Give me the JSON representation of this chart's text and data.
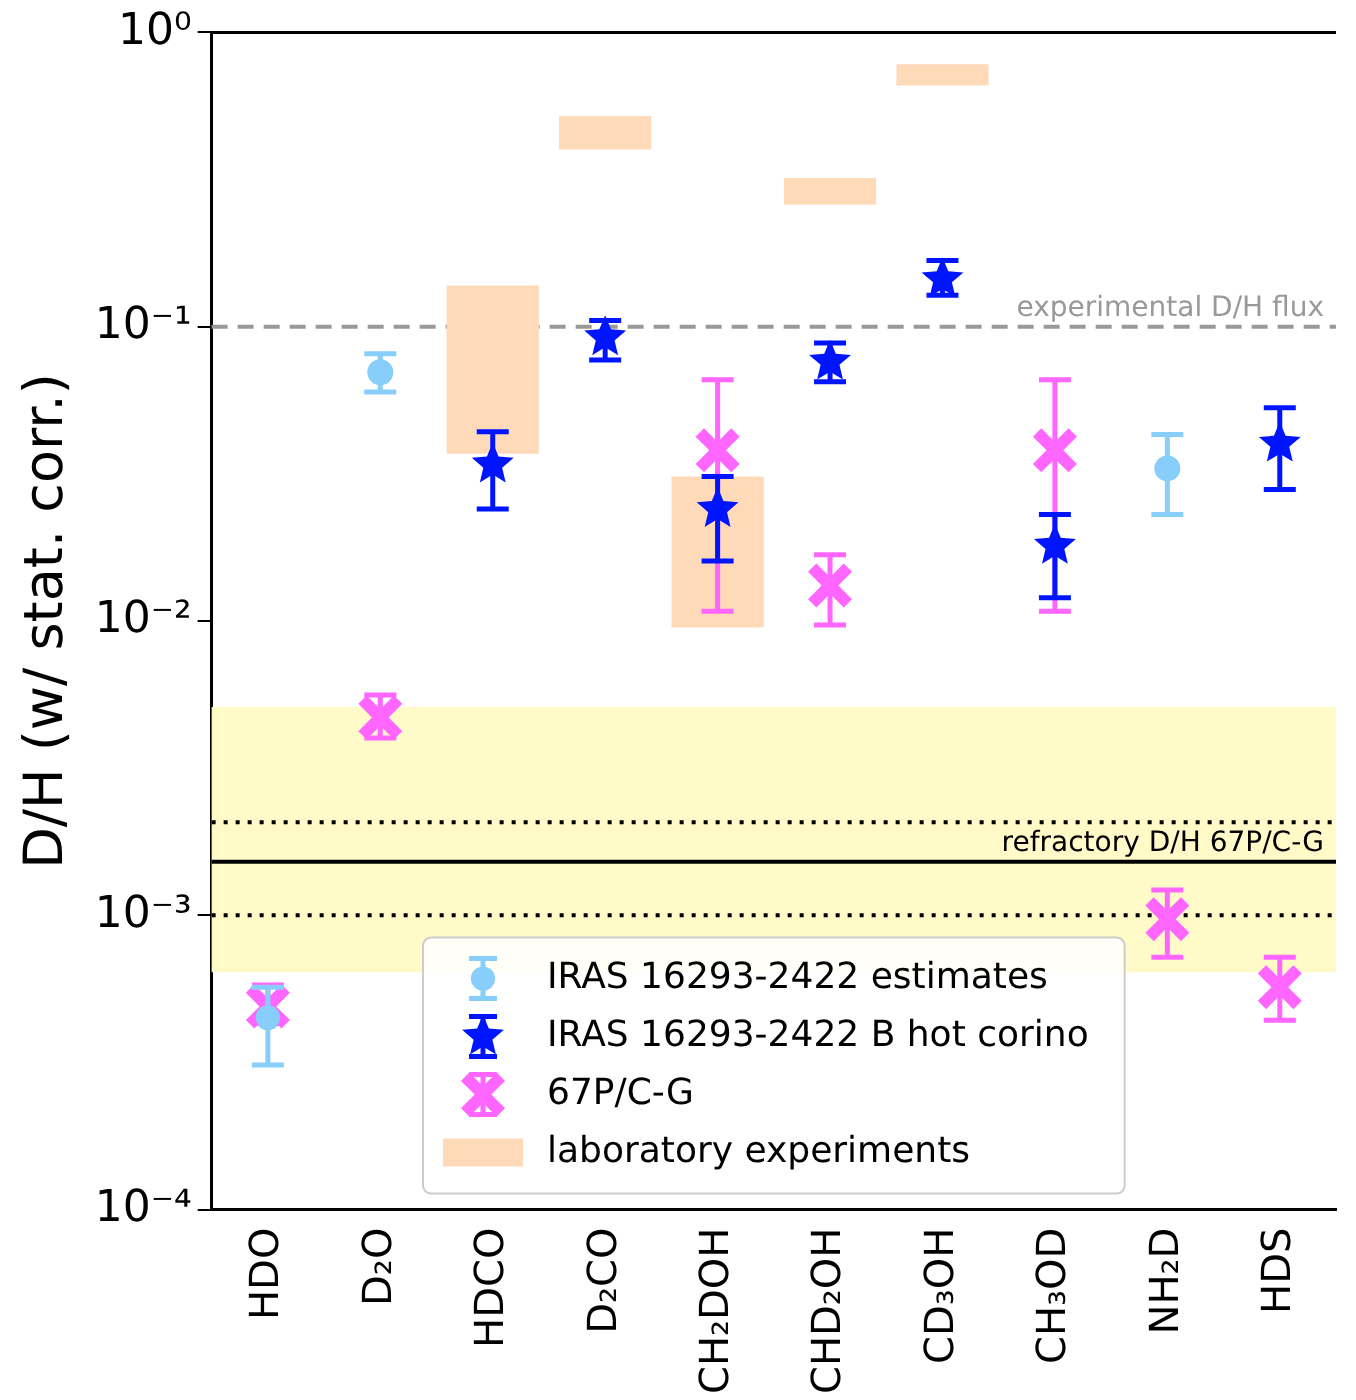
{
  "chart_data": {
    "type": "scatter",
    "ylabel": "D/H (w/ stat. corr.)",
    "categories": [
      "HDO",
      "D₂O",
      "HDCO",
      "D₂CO",
      "CH₂DOH",
      "CHD₂OH",
      "CD₃OH",
      "CH₃OD",
      "NH₂D",
      "HDS"
    ],
    "log": "y",
    "ylim": [
      0.0001,
      1
    ],
    "yticks": [
      {
        "value": 0.0001,
        "label": "10⁻⁴"
      },
      {
        "value": 0.001,
        "label": "10⁻³"
      },
      {
        "value": 0.01,
        "label": "10⁻²"
      },
      {
        "value": 0.1,
        "label": "10⁻¹"
      },
      {
        "value": 1,
        "label": "10⁰"
      }
    ],
    "legend": "bottom",
    "grid": false,
    "series": [
      {
        "name": "IRAS 16293-2422 estimates",
        "marker": "circle",
        "color": "#87cefa",
        "values": [
          0.00045,
          0.07,
          null,
          null,
          null,
          null,
          null,
          null,
          0.033,
          null
        ],
        "errors": [
          [
            0.00031,
            0.00057
          ],
          [
            0.06,
            0.081
          ],
          null,
          null,
          null,
          null,
          null,
          null,
          [
            0.023,
            0.043
          ],
          null
        ]
      },
      {
        "name": "IRAS 16293-2422 B hot corino",
        "marker": "star",
        "color": "#0015ff",
        "values": [
          null,
          null,
          0.034,
          0.092,
          0.024,
          0.076,
          0.145,
          0.018,
          null,
          0.04
        ],
        "errors": [
          null,
          null,
          [
            0.024,
            0.044
          ],
          [
            0.077,
            0.105
          ],
          [
            0.016,
            0.031
          ],
          [
            0.065,
            0.088
          ],
          [
            0.128,
            0.168
          ],
          [
            0.012,
            0.023
          ],
          null,
          [
            0.028,
            0.053
          ]
        ]
      },
      {
        "name": "67P/C-G",
        "marker": "cross",
        "color": "#ff66ff",
        "values": [
          0.00049,
          0.0047,
          null,
          null,
          0.038,
          0.0132,
          null,
          0.038,
          0.00097,
          0.00057
        ],
        "errors": [
          [
            0.00043,
            0.00058
          ],
          [
            0.004,
            0.0056
          ],
          null,
          null,
          [
            0.0108,
            0.066
          ],
          [
            0.0097,
            0.0168
          ],
          null,
          [
            0.0108,
            0.066
          ],
          [
            0.00072,
            0.00122
          ],
          [
            0.00044,
            0.00072
          ]
        ]
      },
      {
        "name": "laboratory experiments",
        "type": "bar",
        "color": "#ffdab9",
        "base": [
          null,
          null,
          0.037,
          0.4,
          0.0095,
          0.26,
          0.66,
          null,
          null,
          null
        ],
        "values": [
          null,
          null,
          0.101,
          0.12,
          0.0215,
          0.06,
          0.12,
          null,
          null,
          null
        ]
      }
    ],
    "ref_lines": [
      {
        "axis": "y",
        "value": 0.1,
        "label": "experimental D/H flux",
        "color": "#999999",
        "line_style": "dashed"
      },
      {
        "axis": "y",
        "value": 0.00152,
        "label": "refractory D/H 67P/C-G",
        "color": "#000000",
        "line_style": "solid"
      },
      {
        "axis": "y",
        "value": 0.00207,
        "color": "#000000",
        "line_style": "dotted"
      },
      {
        "axis": "y",
        "value": 0.001,
        "color": "#000000",
        "line_style": "dotted"
      }
    ],
    "bands": [
      {
        "axis": "y",
        "from": 0.00064,
        "to": 0.0051,
        "color": "#fffac8"
      }
    ]
  }
}
